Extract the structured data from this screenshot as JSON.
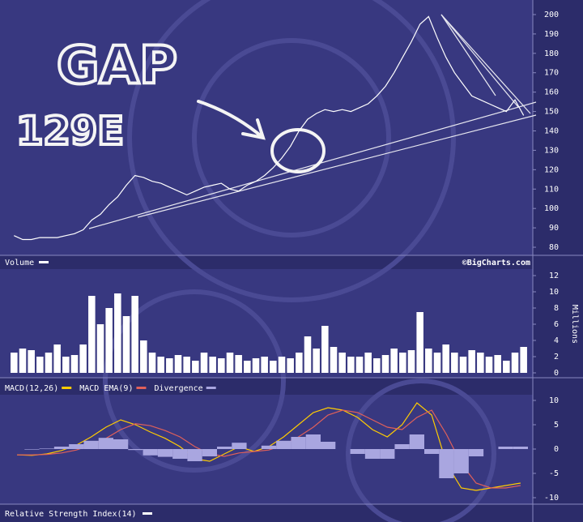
{
  "chart_data": [
    {
      "type": "line",
      "color": "#ffffff",
      "values": [
        86,
        84,
        84,
        85,
        85,
        85,
        86,
        87,
        89,
        94,
        97,
        102,
        106,
        112,
        117,
        116,
        114,
        113,
        111,
        109,
        107,
        109,
        111,
        112,
        113,
        110,
        109,
        112,
        114,
        117,
        121,
        126,
        132,
        140,
        146,
        149,
        151,
        150,
        151,
        150,
        152,
        154,
        158,
        163,
        170,
        178,
        186,
        195,
        199,
        188,
        178,
        170,
        164,
        158,
        156,
        154,
        152,
        150,
        156,
        148
      ],
      "ylim": [
        76,
        204
      ],
      "yticks": [
        80,
        90,
        100,
        110,
        120,
        130,
        140,
        150,
        160,
        170,
        180,
        190,
        200
      ],
      "annotations": [
        "GAP",
        "129E"
      ],
      "credit": "©BigCharts.com"
    },
    {
      "type": "bar",
      "title": "Volume",
      "color": "#ffffff",
      "y_label": "Millions",
      "values": [
        2.5,
        3,
        2.8,
        2,
        2.5,
        3.5,
        2,
        2.2,
        3.5,
        9.5,
        6,
        8,
        9.8,
        7,
        9.5,
        4,
        2.5,
        2,
        1.8,
        2.2,
        2,
        1.5,
        2.5,
        2,
        1.8,
        2.5,
        2.2,
        1.5,
        1.8,
        2,
        1.5,
        2,
        1.8,
        2.5,
        4.5,
        3,
        5.8,
        3.2,
        2.5,
        2,
        2,
        2.5,
        1.8,
        2.2,
        3,
        2.5,
        2.8,
        7.5,
        3,
        2.5,
        3.5,
        2.5,
        2,
        2.8,
        2.5,
        2,
        2.2,
        1.5,
        2.5,
        3.2
      ],
      "ylim": [
        0,
        12.8
      ],
      "yticks": [
        0,
        2,
        4,
        6,
        8,
        10,
        12
      ]
    },
    {
      "type": "line",
      "series": [
        {
          "name": "MACD(12,26)",
          "color": "#ffcc00",
          "values": [
            -1.2,
            -1.3,
            -1,
            -0.3,
            0.8,
            2.5,
            4.5,
            6,
            5,
            3.5,
            2.2,
            0.5,
            -2,
            -2.5,
            -1,
            0.5,
            -0.5,
            0.5,
            2.5,
            5,
            7.5,
            8.5,
            8,
            6.5,
            4,
            2.5,
            5,
            9.5,
            7,
            -3,
            -8,
            -8.5,
            -8,
            -7.5,
            -7
          ]
        },
        {
          "name": "MACD EMA(9)",
          "color": "#e0605a",
          "values": [
            -1.2,
            -1.2,
            -1.1,
            -0.8,
            -0.2,
            0.8,
            2.2,
            4,
            5.2,
            4.8,
            3.8,
            2.5,
            0.5,
            -1,
            -1.5,
            -0.8,
            -0.5,
            -0.2,
            0.8,
            2.5,
            4.5,
            7,
            8,
            7.5,
            6,
            4.5,
            4,
            6.5,
            8,
            3,
            -3,
            -7,
            -8,
            -8,
            -7.5
          ]
        },
        {
          "name": "Divergence",
          "color": "#a9a6e0",
          "style": "bar",
          "values": [
            0,
            -0.1,
            0.1,
            0.5,
            1,
            1.7,
            2.3,
            2,
            -0.2,
            -1.3,
            -1.6,
            -2,
            -2.5,
            -1.5,
            0.5,
            1.3,
            0,
            0.7,
            1.7,
            2.5,
            3,
            1.5,
            0,
            -1,
            -2,
            -2,
            1,
            3,
            -1,
            -6,
            -5,
            -1.5,
            0,
            0.5,
            0.5
          ]
        }
      ],
      "ylim": [
        -11,
        11
      ],
      "yticks": [
        10,
        5,
        0,
        -5,
        -10
      ]
    },
    {
      "type": "label",
      "title": "Relative Strength Index(14)"
    }
  ]
}
